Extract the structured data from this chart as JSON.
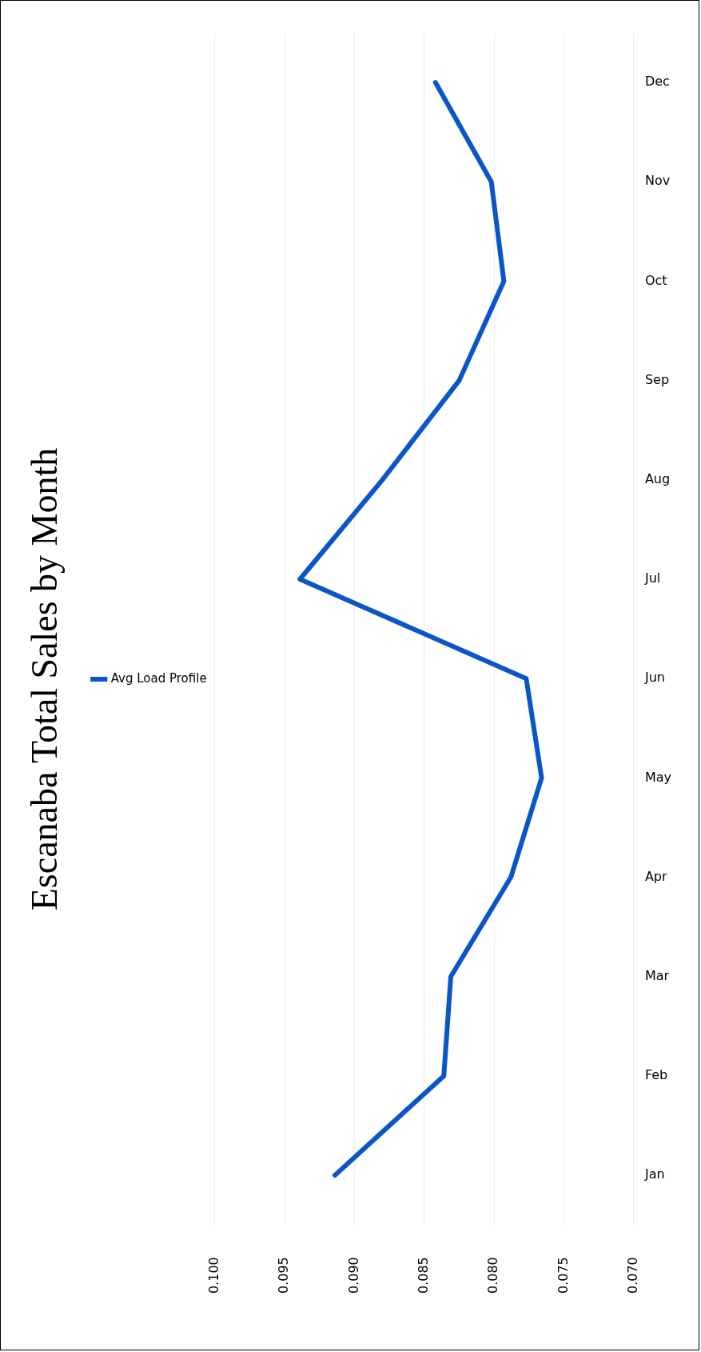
{
  "chart_data": {
    "type": "line",
    "title": "Escanaba Total Sales by Month",
    "orientation": "horizontal",
    "categories": [
      "Dec",
      "Nov",
      "Oct",
      "Sep",
      "Aug",
      "Jul",
      "Jun",
      "May",
      "Apr",
      "Mar",
      "Feb",
      "Jan"
    ],
    "series": [
      {
        "name": "Avg Load Profile",
        "color": "#0a56c8",
        "values": [
          0.0842,
          0.0802,
          0.0793,
          0.0825,
          0.088,
          0.0939,
          0.0777,
          0.0766,
          0.0788,
          0.0831,
          0.0836,
          0.0914
        ]
      }
    ],
    "xlim": [
      0.1,
      0.07
    ],
    "xticks": [
      {
        "value": 0.1,
        "label": "0.100"
      },
      {
        "value": 0.095,
        "label": "0.095"
      },
      {
        "value": 0.09,
        "label": "0.090"
      },
      {
        "value": 0.085,
        "label": "0.085"
      },
      {
        "value": 0.08,
        "label": "0.080"
      },
      {
        "value": 0.075,
        "label": "0.075"
      },
      {
        "value": 0.07,
        "label": "0.070"
      }
    ],
    "grid": "x",
    "legend": "left",
    "marker": "none",
    "line_style": "solid"
  }
}
